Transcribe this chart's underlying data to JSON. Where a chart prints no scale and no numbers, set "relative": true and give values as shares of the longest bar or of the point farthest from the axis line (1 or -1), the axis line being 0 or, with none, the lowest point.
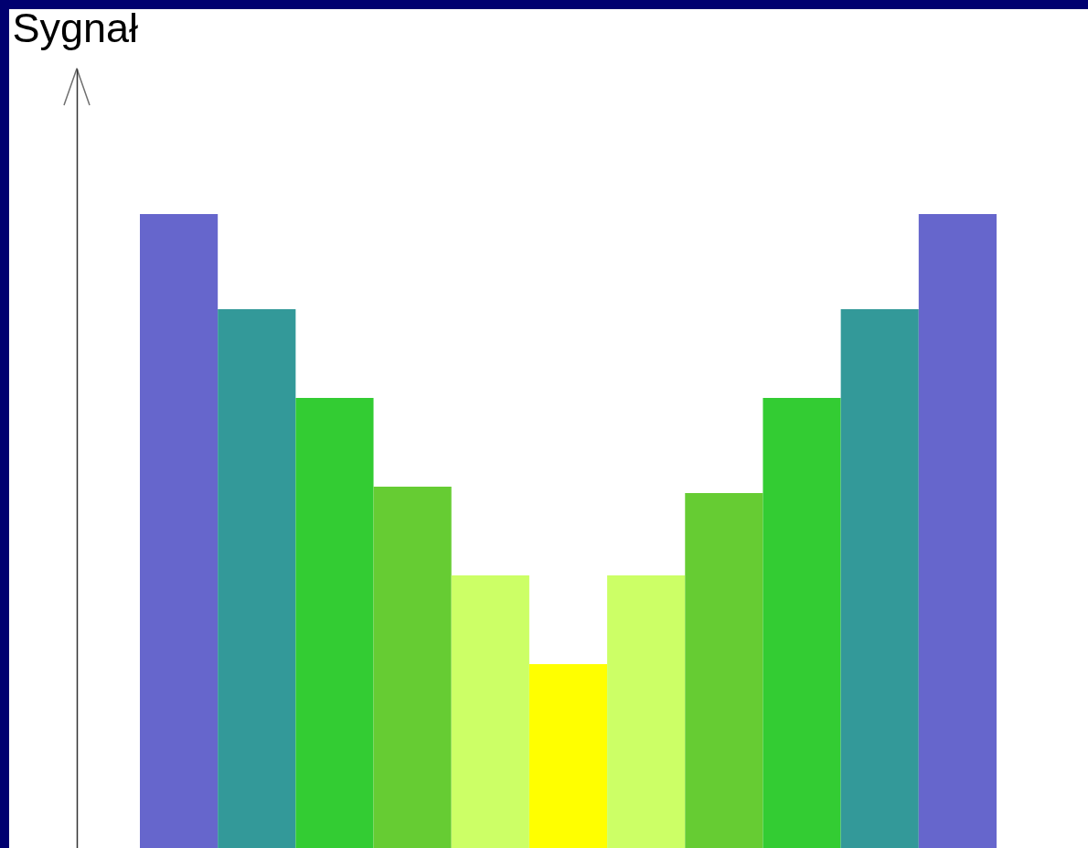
{
  "chart_data": {
    "type": "bar",
    "ylabel": "Sygnał",
    "relative": true,
    "categories": [
      null,
      null,
      null,
      null,
      null,
      null,
      null,
      null,
      null,
      null,
      null
    ],
    "values": [
      1,
      0.85,
      0.71,
      0.57,
      0.43,
      0.29,
      0.43,
      0.56,
      0.71,
      0.85,
      1
    ],
    "colors": [
      "#6666cc",
      "#339999",
      "#33cc33",
      "#66cc33",
      "#ccff66",
      "#ffff00",
      "#ccff66",
      "#66cc33",
      "#33cc33",
      "#339999",
      "#6666cc"
    ]
  }
}
